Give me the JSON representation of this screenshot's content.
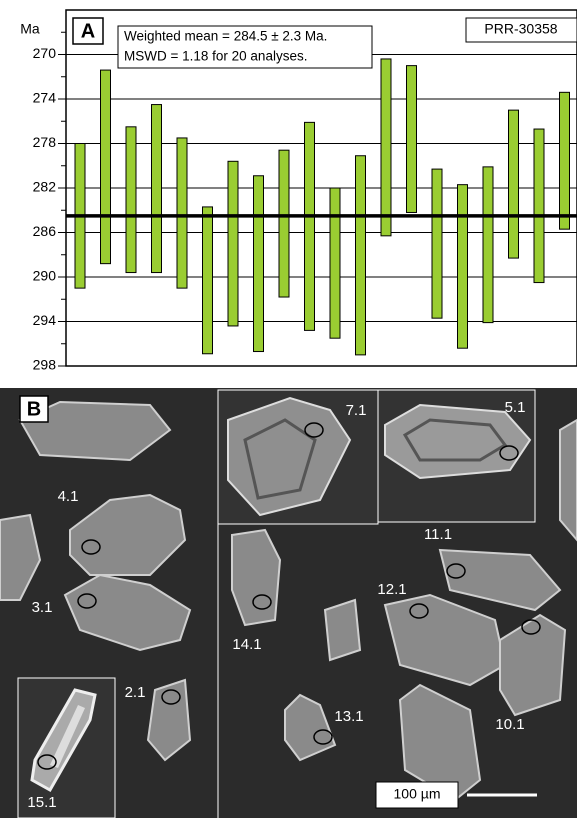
{
  "chart_data": {
    "type": "range-bar",
    "panel_label": "A",
    "y_label": "Ma",
    "sample": "PRR-30358",
    "annotations": [
      "Weighted mean = 284.5 ± 2.3 Ma.",
      "MSWD = 1.18 for 20 analyses."
    ],
    "low": [
      278.0,
      271.4,
      276.5,
      274.5,
      277.5,
      283.7,
      279.6,
      280.9,
      278.6,
      276.1,
      282.0,
      279.1,
      270.4,
      271.0,
      280.3,
      281.7,
      280.1,
      275.0,
      276.7,
      273.4
    ],
    "high": [
      291.0,
      288.8,
      289.6,
      289.6,
      291.0,
      296.9,
      294.4,
      296.7,
      291.8,
      294.8,
      295.5,
      297.0,
      286.3,
      284.2,
      293.7,
      296.4,
      294.1,
      288.3,
      290.5,
      285.7
    ],
    "mean": 284.5,
    "color": "#9acd32",
    "y_inverted": true,
    "grid": true,
    "ylim": [
      266,
      298
    ],
    "yticks": [
      270,
      274,
      278,
      282,
      286,
      290,
      294,
      298
    ],
    "yminorticks": [
      268,
      272,
      276,
      280,
      284,
      288,
      292,
      296
    ]
  },
  "panel_b": {
    "panel_label": "B",
    "scale_bar": "100 µm",
    "grain_labels": [
      "4.1",
      "3.1",
      "2.1",
      "15.1",
      "7.1",
      "5.1",
      "11.1",
      "12.1",
      "14.1",
      "13.1",
      "10.1"
    ]
  }
}
